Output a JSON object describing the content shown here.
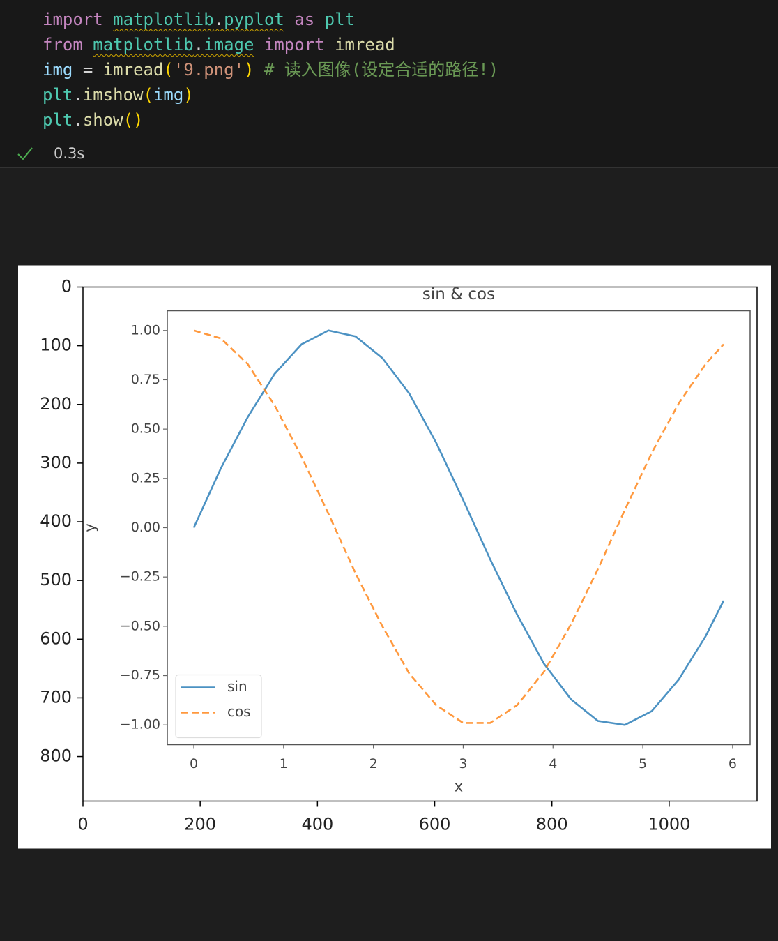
{
  "code": {
    "lines": [
      [
        "import",
        "matplotlib",
        ".",
        "pyplot",
        "as",
        "plt"
      ],
      [
        "from",
        "matplotlib",
        ".",
        "image",
        "import",
        "imread"
      ],
      [
        "img",
        "=",
        "imread",
        "(",
        "'9.png'",
        ")",
        "# 读入图像(设定合适的路径!)"
      ],
      [
        "plt",
        ".",
        "imshow",
        "(",
        "img",
        ")"
      ],
      [
        "plt",
        ".",
        "show",
        "()"
      ]
    ]
  },
  "status": {
    "duration": "0.3s"
  },
  "chart_data": [
    {
      "type": "image",
      "xlim": [
        0,
        1150
      ],
      "ylim": [
        876,
        0
      ],
      "xticks": [
        0,
        200,
        400,
        600,
        800,
        1000
      ],
      "yticks": [
        0,
        100,
        200,
        300,
        400,
        500,
        600,
        700,
        800
      ]
    },
    {
      "type": "line",
      "title": "sin & cos",
      "xlabel": "x",
      "ylabel": "y",
      "x": [
        0,
        0.3,
        0.6,
        0.9,
        1.2,
        1.5,
        1.8,
        2.1,
        2.4,
        2.7,
        3.0,
        3.3,
        3.6,
        3.9,
        4.2,
        4.5,
        4.8,
        5.1,
        5.4,
        5.7,
        5.9
      ],
      "series": [
        {
          "name": "sin",
          "color": "#1f77b4",
          "dash": "solid",
          "values": [
            0,
            0.3,
            0.56,
            0.78,
            0.93,
            1.0,
            0.97,
            0.86,
            0.68,
            0.43,
            0.14,
            -0.16,
            -0.44,
            -0.69,
            -0.87,
            -0.98,
            -1.0,
            -0.93,
            -0.77,
            -0.55,
            -0.37
          ]
        },
        {
          "name": "cos",
          "color": "#ff7f0e",
          "dash": "dashed",
          "values": [
            1,
            0.96,
            0.83,
            0.62,
            0.36,
            0.07,
            -0.23,
            -0.5,
            -0.74,
            -0.9,
            -0.99,
            -0.99,
            -0.9,
            -0.73,
            -0.49,
            -0.21,
            0.09,
            0.38,
            0.63,
            0.83,
            0.93
          ]
        }
      ],
      "xlim": [
        -0.295,
        6.195
      ],
      "ylim": [
        -1.1,
        1.1
      ],
      "xticks": [
        0,
        1,
        2,
        3,
        4,
        5,
        6
      ],
      "yticks": [
        {
          "value": -1,
          "label": "−1.00"
        },
        {
          "value": -0.75,
          "label": "−0.75"
        },
        {
          "value": -0.5,
          "label": "−0.50"
        },
        {
          "value": -0.25,
          "label": "−0.25"
        },
        {
          "value": 0,
          "label": "0.00"
        },
        {
          "value": 0.25,
          "label": "0.25"
        },
        {
          "value": 0.5,
          "label": "0.50"
        },
        {
          "value": 0.75,
          "label": "0.75"
        },
        {
          "value": 1,
          "label": "1.00"
        }
      ],
      "legend": "lower left"
    }
  ]
}
